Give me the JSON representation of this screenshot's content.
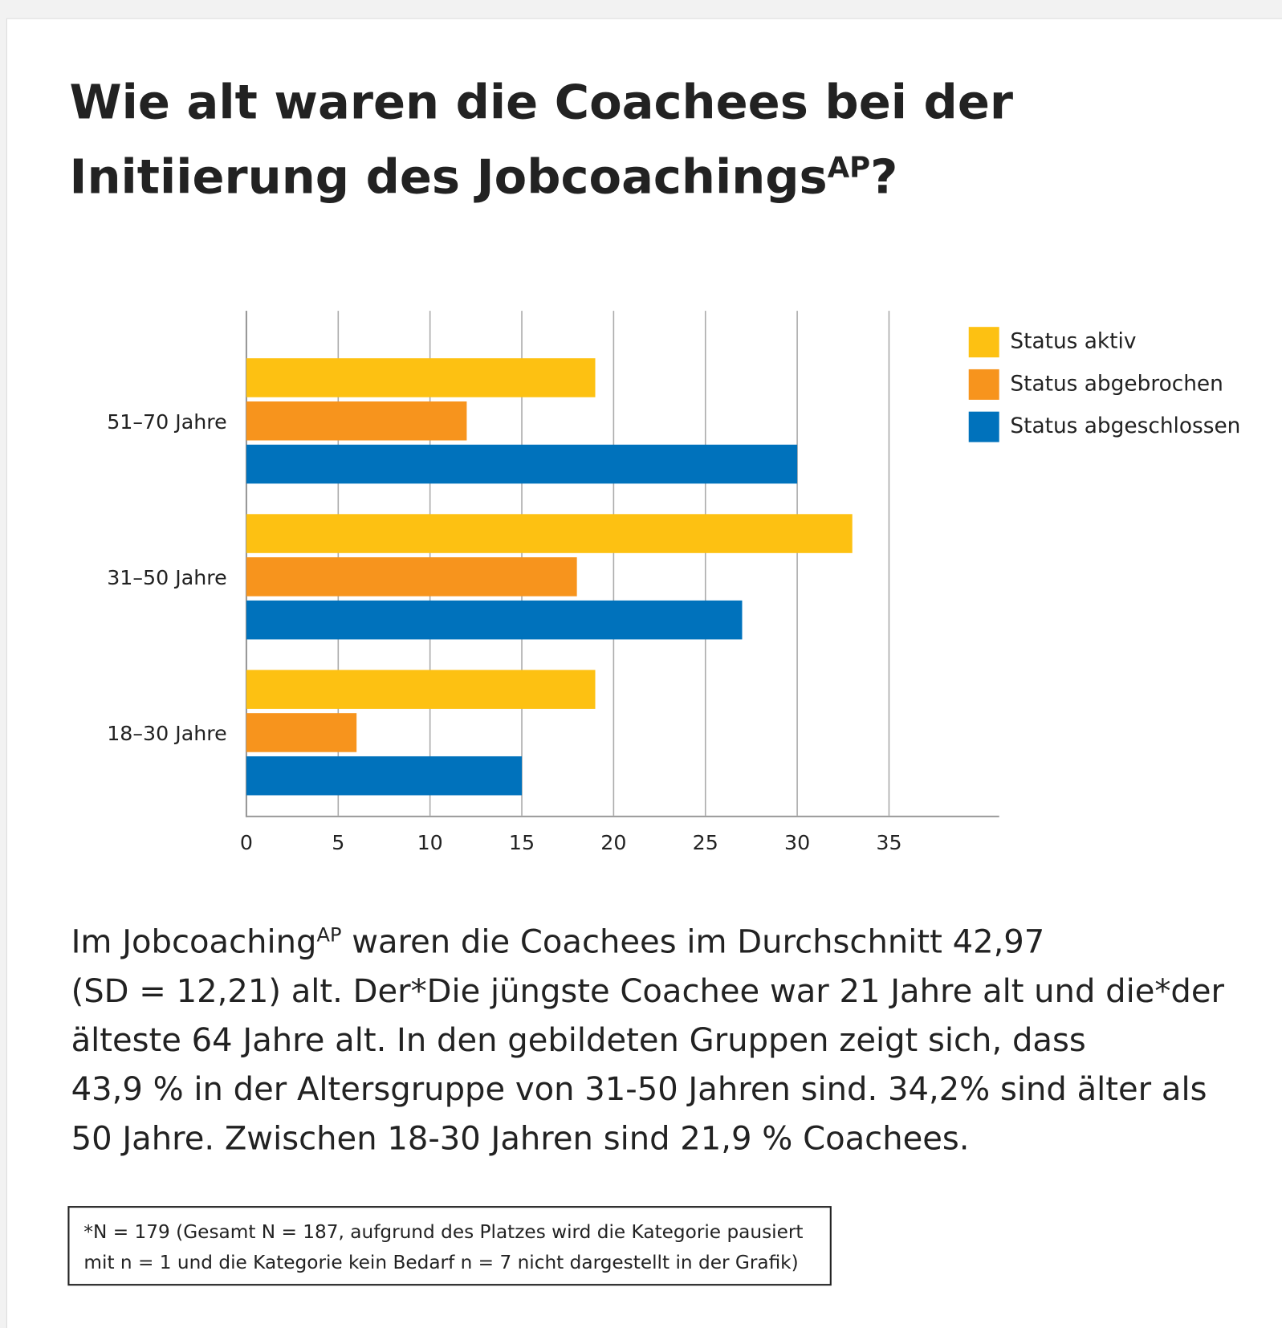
{
  "chart_data": {
    "type": "bar",
    "orientation": "horizontal",
    "title": [
      [
        "Wie alt waren die Coachees bei der"
      ],
      [
        "Initiierung des Jobcoachings",
        "AP",
        "?"
      ]
    ],
    "categories": [
      "51–70 Jahre",
      "31–50 Jahre",
      "18–30 Jahre"
    ],
    "series": [
      {
        "name": "Status aktiv",
        "color": "#fdc112",
        "values": [
          19,
          33,
          19
        ]
      },
      {
        "name": "Status abgebrochen",
        "color": "#f7941d",
        "values": [
          12,
          18,
          6
        ]
      },
      {
        "name": "Status abgeschlossen",
        "color": "#0072bc",
        "values": [
          30,
          27,
          15
        ]
      }
    ],
    "xlim": [
      0,
      41
    ],
    "xticks": [
      0,
      5,
      10,
      15,
      20,
      25,
      30,
      35
    ],
    "grid": true,
    "legend": "right"
  },
  "paragraph": [
    [
      "Im Jobcoaching",
      "AP",
      " waren die Coachees im Durchschnitt 42,97"
    ],
    [
      "(SD = 12,21) alt. Der*Die jüngste Coachee war 21 Jahre alt und die*der"
    ],
    [
      "älteste 64 Jahre alt. In den gebildeten Gruppen zeigt sich, dass"
    ],
    [
      "43,9 % in der Altersgruppe von 31-50 Jahren sind. 34,2% sind älter als"
    ],
    [
      "50 Jahre. Zwischen 18-30 Jahren sind 21,9 % Coachees."
    ]
  ],
  "footnote": [
    "*N = 179 (Gesamt N = 187, aufgrund des Platzes wird die Kategorie pausiert",
    "mit n = 1 und die Kategorie kein Bedarf n = 7 nicht dargestellt in der Grafik)"
  ]
}
